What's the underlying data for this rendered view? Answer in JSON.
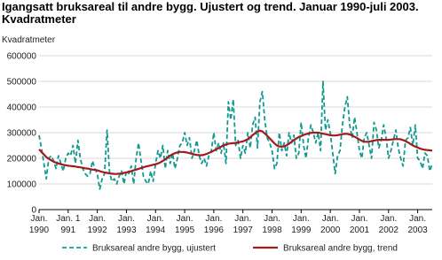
{
  "chart_data": {
    "type": "line",
    "title": "Igangsatt bruksareal til andre bygg. Ujustert og trend. Januar 1990-juli 2003. Kvadratmeter",
    "y_label": "Kvadratmeter",
    "categories": [
      "Jan.\n1990",
      null,
      null,
      null,
      null,
      null,
      null,
      null,
      null,
      null,
      null,
      null,
      "Jan. 1\n991",
      null,
      null,
      null,
      null,
      null,
      null,
      null,
      null,
      null,
      null,
      null,
      "Jan.\n1992",
      null,
      null,
      null,
      null,
      null,
      null,
      null,
      null,
      null,
      null,
      null,
      "Jan.\n1993",
      null,
      null,
      null,
      null,
      null,
      null,
      null,
      null,
      null,
      null,
      null,
      "Jan.\n1994",
      null,
      null,
      null,
      null,
      null,
      null,
      null,
      null,
      null,
      null,
      null,
      "Jan.\n1995",
      null,
      null,
      null,
      null,
      null,
      null,
      null,
      null,
      null,
      null,
      null,
      "Jan.\n1996",
      null,
      null,
      null,
      null,
      null,
      null,
      null,
      null,
      null,
      null,
      null,
      "Jan.\n1997",
      null,
      null,
      null,
      null,
      null,
      null,
      null,
      null,
      null,
      null,
      null,
      "Jan.\n1998",
      null,
      null,
      null,
      null,
      null,
      null,
      null,
      null,
      null,
      null,
      null,
      "Jan.\n1999",
      null,
      null,
      null,
      null,
      null,
      null,
      null,
      null,
      null,
      null,
      null,
      "Jan.\n2000",
      null,
      null,
      null,
      null,
      null,
      null,
      null,
      null,
      null,
      null,
      null,
      "Jan.\n2001",
      null,
      null,
      null,
      null,
      null,
      null,
      null,
      null,
      null,
      null,
      null,
      "Jan.\n2002",
      null,
      null,
      null,
      null,
      null,
      null,
      null,
      null,
      null,
      null,
      null,
      "Jan.\n2003",
      null,
      null,
      null,
      null,
      null,
      null
    ],
    "series": [
      {
        "name": "Bruksareal andre bygg, ujustert",
        "color": "#13998f",
        "dashed": true,
        "values": [
          290000,
          240000,
          180000,
          120000,
          200000,
          210000,
          190000,
          160000,
          210000,
          180000,
          150000,
          200000,
          220000,
          210000,
          250000,
          180000,
          270000,
          200000,
          160000,
          140000,
          130000,
          140000,
          190000,
          160000,
          140000,
          80000,
          120000,
          140000,
          310000,
          150000,
          110000,
          120000,
          100000,
          130000,
          150000,
          100000,
          150000,
          140000,
          170000,
          100000,
          200000,
          260000,
          190000,
          130000,
          110000,
          100000,
          150000,
          110000,
          180000,
          230000,
          200000,
          250000,
          160000,
          230000,
          180000,
          220000,
          160000,
          200000,
          250000,
          260000,
          300000,
          250000,
          280000,
          200000,
          230000,
          270000,
          210000,
          180000,
          200000,
          170000,
          210000,
          230000,
          300000,
          230000,
          260000,
          220000,
          260000,
          180000,
          420000,
          350000,
          430000,
          250000,
          270000,
          200000,
          250000,
          220000,
          300000,
          240000,
          330000,
          360000,
          240000,
          420000,
          460000,
          350000,
          280000,
          260000,
          230000,
          160000,
          180000,
          300000,
          230000,
          260000,
          210000,
          300000,
          260000,
          290000,
          200000,
          220000,
          340000,
          250000,
          200000,
          280000,
          330000,
          300000,
          260000,
          300000,
          230000,
          500000,
          310000,
          350000,
          300000,
          220000,
          140000,
          210000,
          230000,
          330000,
          400000,
          440000,
          330000,
          280000,
          360000,
          300000,
          230000,
          200000,
          280000,
          300000,
          250000,
          200000,
          340000,
          310000,
          240000,
          270000,
          330000,
          280000,
          200000,
          230000,
          270000,
          310000,
          240000,
          200000,
          170000,
          270000,
          280000,
          320000,
          250000,
          330000,
          200000,
          190000,
          160000,
          220000,
          210000,
          150000,
          180000
        ]
      },
      {
        "name": "Bruksareal andre bygg, trend",
        "color": "#a3191c",
        "dashed": false,
        "values": [
          235000,
          225000,
          215000,
          205000,
          198000,
          192000,
          187000,
          183000,
          180000,
          177000,
          175000,
          173000,
          171000,
          170000,
          169000,
          168000,
          166000,
          165000,
          163000,
          161000,
          160000,
          158000,
          156000,
          155000,
          153000,
          150000,
          147000,
          145000,
          143000,
          141000,
          140000,
          139000,
          139000,
          140000,
          141000,
          143000,
          145000,
          148000,
          150000,
          153000,
          156000,
          159000,
          162000,
          165000,
          168000,
          170000,
          172000,
          175000,
          177000,
          180000,
          184000,
          190000,
          196000,
          203000,
          210000,
          216000,
          220000,
          223000,
          225000,
          225000,
          224000,
          222000,
          220000,
          218000,
          215000,
          213000,
          212000,
          212000,
          214000,
          217000,
          221000,
          225000,
          230000,
          235000,
          240000,
          245000,
          250000,
          254000,
          257000,
          258000,
          259000,
          260000,
          262000,
          264000,
          266000,
          270000,
          275000,
          282000,
          290000,
          298000,
          304000,
          308000,
          305000,
          297000,
          288000,
          278000,
          268000,
          258000,
          250000,
          246000,
          245000,
          247000,
          251000,
          257000,
          264000,
          271000,
          277000,
          283000,
          287000,
          291000,
          294000,
          297000,
          299000,
          300000,
          300000,
          300000,
          298000,
          296000,
          294000,
          292000,
          290000,
          289000,
          289000,
          290000,
          292000,
          294000,
          295000,
          295000,
          293000,
          289000,
          284000,
          279000,
          273000,
          268000,
          265000,
          264000,
          265000,
          267000,
          269000,
          271000,
          272000,
          272000,
          272000,
          272000,
          272000,
          273000,
          274000,
          275000,
          275000,
          274000,
          271000,
          267000,
          262000,
          256000,
          250000,
          246000,
          242000,
          238000,
          235000,
          233000,
          232000,
          231000,
          230000
        ]
      }
    ],
    "ylim": [
      0,
      600000
    ],
    "yticks": [
      0,
      100000,
      200000,
      300000,
      400000,
      500000,
      600000
    ],
    "grid": true
  }
}
